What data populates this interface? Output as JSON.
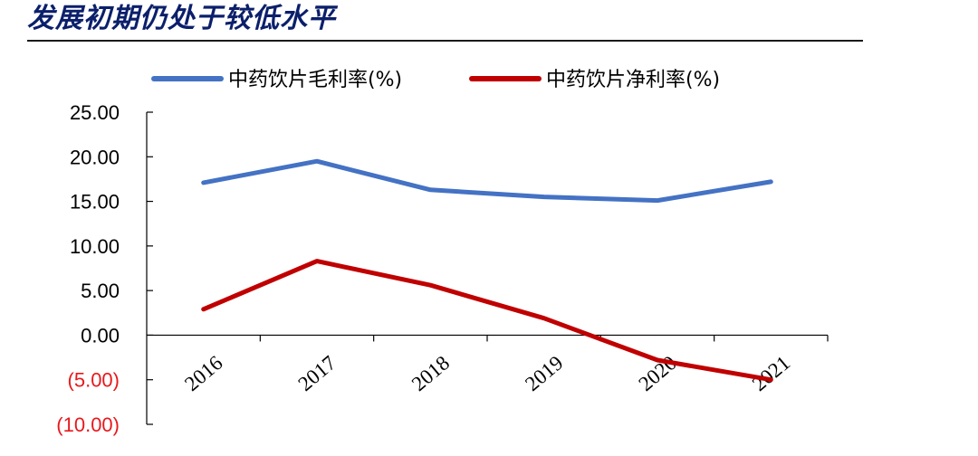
{
  "header": {
    "title": "发展初期仍处于较低水平"
  },
  "chart_data": {
    "type": "line",
    "categories": [
      "2016",
      "2017",
      "2018",
      "2019",
      "2020",
      "2021"
    ],
    "series": [
      {
        "name": "中药饮片毛利率(%)",
        "color": "#4472c4",
        "values": [
          17.1,
          19.5,
          16.3,
          15.5,
          15.1,
          17.2
        ]
      },
      {
        "name": "中药饮片净利率(%)",
        "color": "#c00000",
        "values": [
          2.9,
          8.3,
          5.6,
          1.9,
          -2.8,
          -5.0
        ]
      }
    ],
    "ylim": [
      -10,
      25
    ],
    "yticks": [
      "25.00",
      "20.00",
      "15.00",
      "10.00",
      "5.00",
      "0.00",
      "(5.00)",
      "(10.00)"
    ],
    "ytick_values": [
      25,
      20,
      15,
      10,
      5,
      0,
      -5,
      -10
    ],
    "negative_tick_color": "#e8191c",
    "legend_position": "top",
    "grid": false,
    "xlabel": "",
    "ylabel": ""
  }
}
